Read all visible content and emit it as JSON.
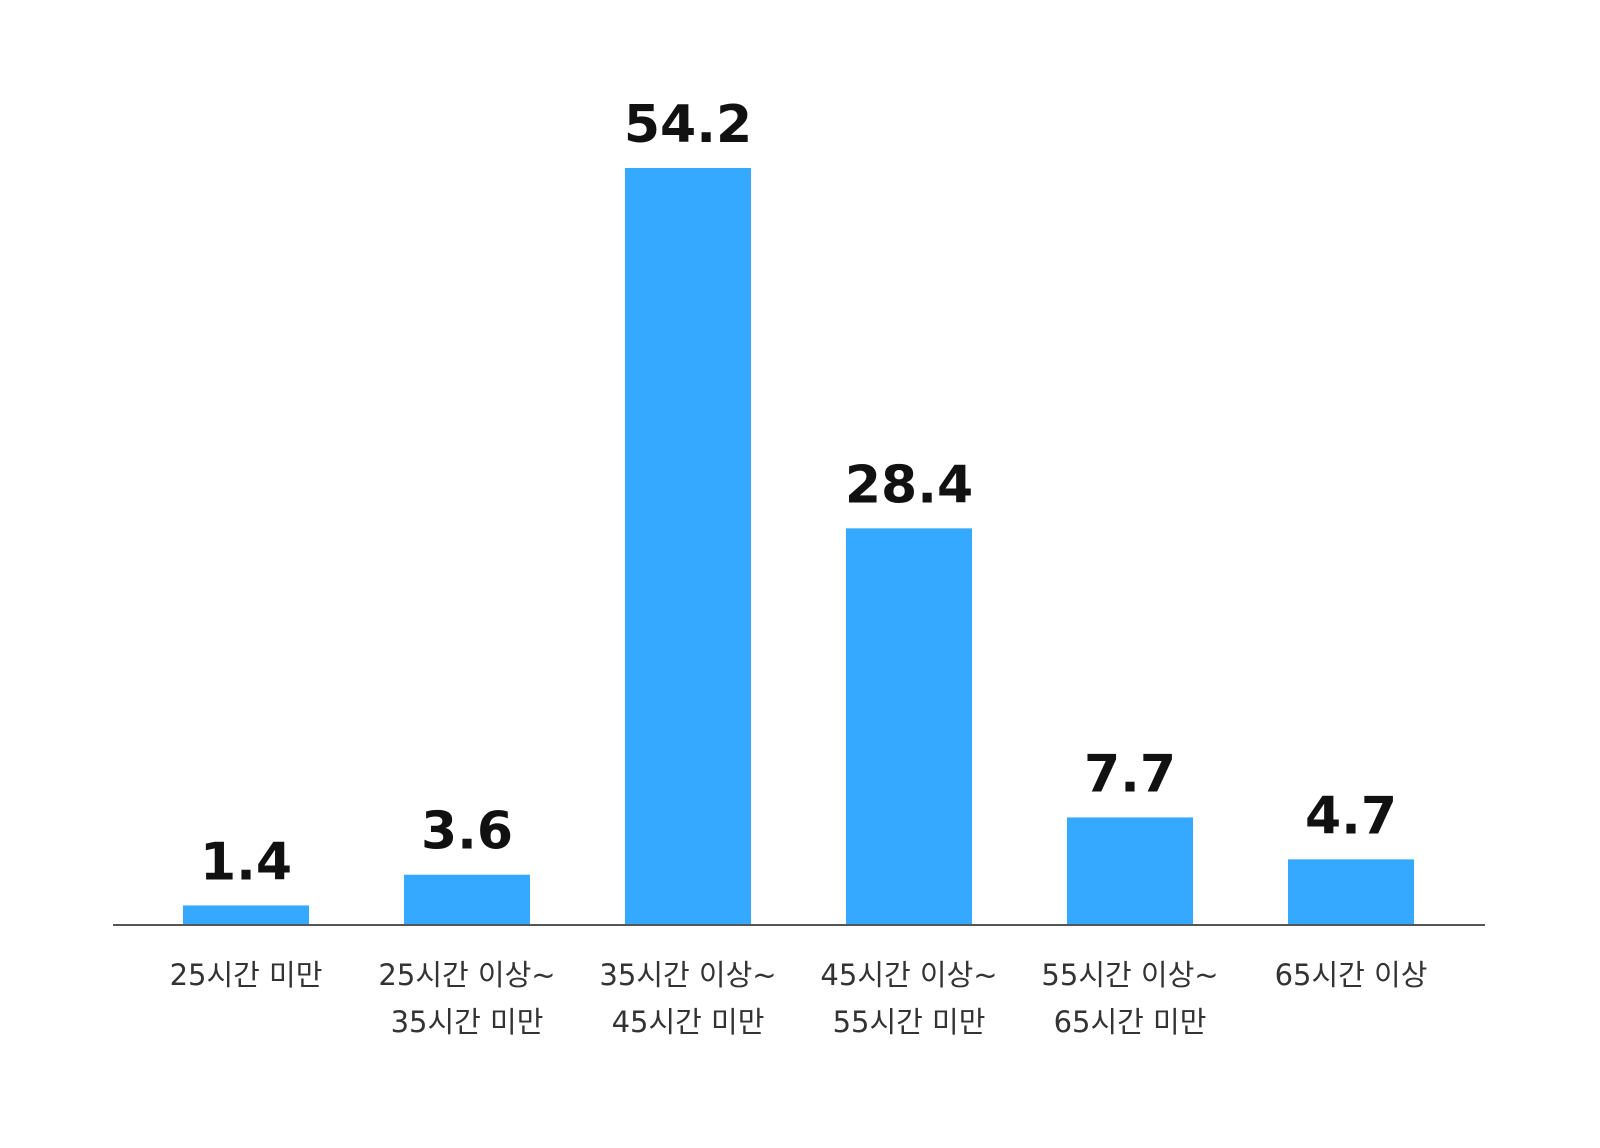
{
  "chart_data": {
    "type": "bar",
    "categories": [
      [
        "25시간 미만"
      ],
      [
        "25시간 이상~",
        "35시간 미만"
      ],
      [
        "35시간 이상~",
        "45시간 미만"
      ],
      [
        "45시간 이상~",
        "55시간 미만"
      ],
      [
        "55시간 이상~",
        "65시간 미만"
      ],
      [
        "65시간 이상"
      ]
    ],
    "values": [
      1.4,
      3.6,
      54.2,
      28.4,
      7.7,
      4.7
    ],
    "value_labels": [
      "1.4",
      "3.6",
      "54.2",
      "28.4",
      "7.7",
      "4.7"
    ],
    "bar_color": "#35a8ff",
    "axis_color": "#555555",
    "ylim": [
      0,
      54.2
    ],
    "grid": false,
    "title": "",
    "xlabel": "",
    "ylabel": ""
  }
}
